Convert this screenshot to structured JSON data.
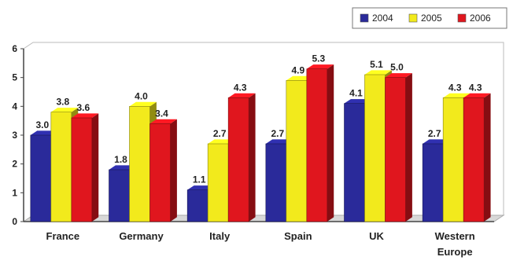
{
  "chart_data": {
    "type": "bar",
    "title": "",
    "xlabel": "",
    "ylabel": "",
    "ylim": [
      0,
      6
    ],
    "yticks": [
      "0",
      "1",
      "2",
      "3",
      "4",
      "5",
      "6"
    ],
    "categories": [
      "France",
      "Germany",
      "Italy",
      "Spain",
      "UK",
      "Western Europe"
    ],
    "series": [
      {
        "name": "2004",
        "color": "#2a2a9a",
        "values": [
          3.0,
          1.8,
          1.1,
          2.7,
          4.1,
          2.7
        ],
        "labels": [
          "3.0",
          "1.8",
          "1.1",
          "2.7",
          "4.1",
          "2.7"
        ]
      },
      {
        "name": "2005",
        "color": "#f2ea1c",
        "values": [
          3.8,
          4.0,
          2.7,
          4.9,
          5.1,
          4.3
        ],
        "labels": [
          "3.8",
          "4.0",
          "2.7",
          "4.9",
          "5.1",
          "4.3"
        ]
      },
      {
        "name": "2006",
        "color": "#e0161e",
        "values": [
          3.6,
          3.4,
          4.3,
          5.3,
          5.0,
          4.3
        ],
        "labels": [
          "3.6",
          "3.4",
          "4.3",
          "5.3",
          "5.0",
          "4.3"
        ]
      }
    ],
    "legend_position": "top-right",
    "grid": false
  }
}
